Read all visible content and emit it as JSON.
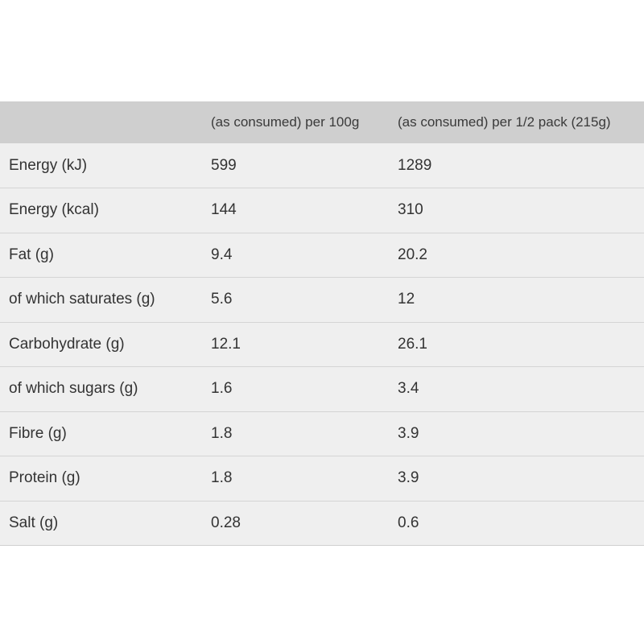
{
  "table": {
    "headers": [
      "",
      "(as consumed) per 100g",
      "(as consumed) per 1/2 pack (215g)"
    ],
    "rows": [
      [
        "Energy (kJ)",
        "599",
        "1289"
      ],
      [
        "Energy (kcal)",
        "144",
        "310"
      ],
      [
        "Fat (g)",
        "9.4",
        "20.2"
      ],
      [
        "of which saturates (g)",
        "5.6",
        "12"
      ],
      [
        "Carbohydrate (g)",
        "12.1",
        "26.1"
      ],
      [
        "of which sugars (g)",
        "1.6",
        "3.4"
      ],
      [
        "Fibre (g)",
        "1.8",
        "3.9"
      ],
      [
        "Protein (g)",
        "1.8",
        "3.9"
      ],
      [
        "Salt (g)",
        "0.28",
        "0.6"
      ]
    ]
  },
  "colors": {
    "header_background": "#cfcfcf",
    "row_background": "#efefef",
    "row_divider": "#d4d4d4",
    "text": "#333333"
  }
}
